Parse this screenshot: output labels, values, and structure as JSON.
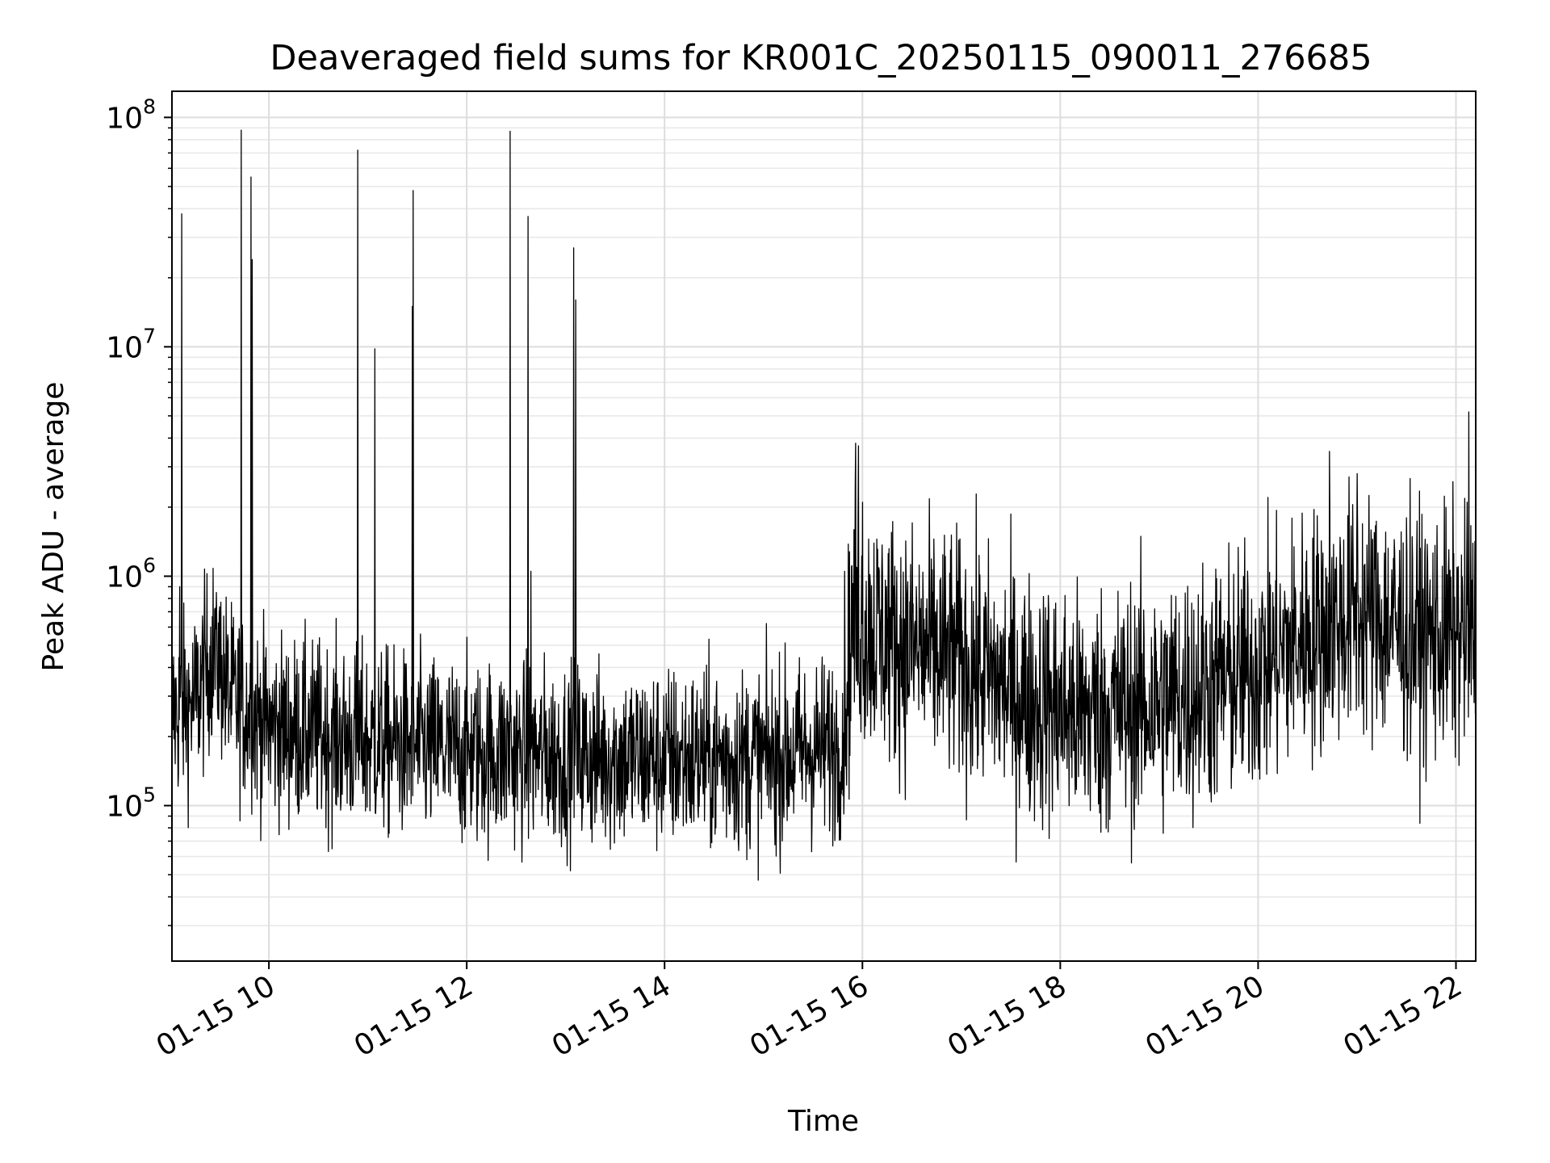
{
  "chart_data": {
    "type": "line",
    "title": "Deaveraged field sums for KR001C_20250115_090011_276685",
    "xlabel": "Time",
    "ylabel": "Peak ADU - average",
    "y_scale": "log",
    "ylim": [
      21000,
      130000000
    ],
    "xlim_hours": [
      9.02,
      22.2
    ],
    "x_ticks": [
      {
        "hour": 10,
        "label": "01-15 10"
      },
      {
        "hour": 12,
        "label": "01-15 12"
      },
      {
        "hour": 14,
        "label": "01-15 14"
      },
      {
        "hour": 16,
        "label": "01-15 16"
      },
      {
        "hour": 18,
        "label": "01-15 18"
      },
      {
        "hour": 20,
        "label": "01-15 20"
      },
      {
        "hour": 22,
        "label": "01-15 22"
      }
    ],
    "y_ticks": [
      {
        "value": 100000,
        "base": "10",
        "exp": "5"
      },
      {
        "value": 1000000,
        "base": "10",
        "exp": "6"
      },
      {
        "value": 10000000,
        "base": "10",
        "exp": "7"
      },
      {
        "value": 100000000,
        "base": "10",
        "exp": "8"
      }
    ],
    "grid": true,
    "line_color": "#000000",
    "series": [
      {
        "baseline": [
          [
            9.02,
            250000
          ],
          [
            9.25,
            280000
          ],
          [
            9.45,
            500000
          ],
          [
            9.6,
            300000
          ],
          [
            10.0,
            220000
          ],
          [
            11.0,
            190000
          ],
          [
            12.0,
            170000
          ],
          [
            13.0,
            165000
          ],
          [
            14.0,
            160000
          ],
          [
            15.0,
            160000
          ],
          [
            15.8,
            185000
          ],
          [
            15.9,
            650000
          ],
          [
            16.4,
            500000
          ],
          [
            17.0,
            430000
          ],
          [
            17.6,
            300000
          ],
          [
            18.2,
            250000
          ],
          [
            19.0,
            280000
          ],
          [
            19.5,
            330000
          ],
          [
            20.0,
            400000
          ],
          [
            20.5,
            550000
          ],
          [
            21.0,
            700000
          ],
          [
            21.6,
            550000
          ],
          [
            22.2,
            550000
          ]
        ],
        "spikes": [
          {
            "hour": 9.12,
            "value": 38000000
          },
          {
            "hour": 9.1,
            "value": 900000
          },
          {
            "hour": 9.47,
            "value": 850000
          },
          {
            "hour": 9.72,
            "value": 88000000
          },
          {
            "hour": 9.82,
            "value": 55000000
          },
          {
            "hour": 9.83,
            "value": 24000000
          },
          {
            "hour": 10.9,
            "value": 72000000
          },
          {
            "hour": 11.07,
            "value": 9800000
          },
          {
            "hour": 11.46,
            "value": 48000000
          },
          {
            "hour": 11.45,
            "value": 15000000
          },
          {
            "hour": 12.44,
            "value": 87000000
          },
          {
            "hour": 12.62,
            "value": 37000000
          },
          {
            "hour": 12.65,
            "value": 1050000
          },
          {
            "hour": 13.08,
            "value": 27000000
          },
          {
            "hour": 13.1,
            "value": 16000000
          },
          {
            "hour": 15.82,
            "value": 1050000
          },
          {
            "hour": 15.93,
            "value": 3800000
          },
          {
            "hour": 15.96,
            "value": 3700000
          },
          {
            "hour": 16.0,
            "value": 2100000
          },
          {
            "hour": 20.72,
            "value": 3500000
          },
          {
            "hour": 21.0,
            "value": 2800000
          },
          {
            "hour": 22.13,
            "value": 5200000
          }
        ]
      }
    ]
  }
}
